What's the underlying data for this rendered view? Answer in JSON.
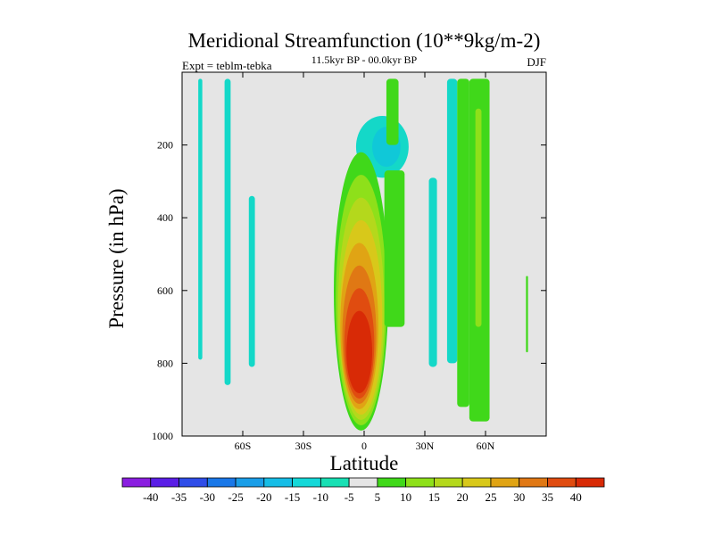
{
  "chart_data": {
    "type": "contour",
    "title": "Meridional Streamfunction (10**9kg/m-2)",
    "subtitle": "11.5kyr BP - 00.0kyr BP",
    "left_label": "Expt = teblm-tebka",
    "right_label": "DJF",
    "xlabel": "Latitude",
    "ylabel": "Pressure (in hPa)",
    "xlim": [
      -90,
      90
    ],
    "ylim": [
      0,
      1000
    ],
    "y_inverted": true,
    "x_ticks": [
      -60,
      -30,
      0,
      30,
      60
    ],
    "x_tick_labels": [
      "60S",
      "30S",
      "0",
      "30N",
      "60N"
    ],
    "y_ticks": [
      200,
      400,
      600,
      800,
      1000
    ],
    "y_tick_labels": [
      "200",
      "400",
      "600",
      "800",
      "1000"
    ],
    "background_color": "#e5e5e5",
    "levels": [
      -40,
      -35,
      -30,
      -25,
      -20,
      -15,
      -10,
      -5,
      5,
      10,
      15,
      20,
      25,
      30,
      35,
      40
    ],
    "colorbar_colors": [
      "#8a1ee0",
      "#5a1ee6",
      "#2f4de8",
      "#1a78e8",
      "#1a9ee8",
      "#16bde6",
      "#14d8d8",
      "#18e0b4",
      "#e5e5e5",
      "#40d81a",
      "#8ee01a",
      "#b4d81c",
      "#d8c81a",
      "#e0a414",
      "#e07814",
      "#e04c10",
      "#d82a06"
    ],
    "features": [
      {
        "type": "band",
        "sign": "negative",
        "lat": [
          -82,
          -80
        ],
        "p": [
          18,
          790
        ],
        "color": "#14d8c8"
      },
      {
        "type": "band",
        "sign": "negative",
        "lat": [
          -69,
          -66
        ],
        "p": [
          18,
          860
        ],
        "color": "#14d8c8"
      },
      {
        "type": "band",
        "sign": "negative",
        "lat": [
          -57,
          -54
        ],
        "p": [
          340,
          810
        ],
        "color": "#14d8c8"
      },
      {
        "type": "blob",
        "sign": "negative",
        "lat": [
          -4,
          22
        ],
        "p": [
          120,
          290
        ],
        "color": "#14d8c8"
      },
      {
        "type": "blob",
        "sign": "negative",
        "lat": [
          4,
          18
        ],
        "p": [
          150,
          260
        ],
        "color": "#10c8d8"
      },
      {
        "type": "band",
        "sign": "positive",
        "lat": [
          11,
          17
        ],
        "p": [
          18,
          200
        ],
        "color": "#40d81a"
      },
      {
        "type": "cell",
        "sign": "positive",
        "lat": [
          -15,
          12
        ],
        "p": [
          220,
          985
        ],
        "peak": 40,
        "color": "#d82a06"
      },
      {
        "type": "band",
        "sign": "positive",
        "lat": [
          10,
          20
        ],
        "p": [
          270,
          700
        ],
        "color": "#40d81a"
      },
      {
        "type": "band",
        "sign": "negative",
        "lat": [
          32,
          36
        ],
        "p": [
          290,
          810
        ],
        "color": "#14d8c8"
      },
      {
        "type": "band",
        "sign": "negative",
        "lat": [
          41,
          46
        ],
        "p": [
          18,
          800
        ],
        "color": "#14d8c8"
      },
      {
        "type": "band",
        "sign": "positive",
        "lat": [
          46,
          52
        ],
        "p": [
          18,
          920
        ],
        "color": "#40d81a"
      },
      {
        "type": "band",
        "sign": "positive",
        "lat": [
          52,
          62
        ],
        "p": [
          18,
          960
        ],
        "color": "#40d81a"
      },
      {
        "type": "band",
        "sign": "positive",
        "lat": [
          55,
          58
        ],
        "p": [
          100,
          700
        ],
        "color": "#8ee01a"
      },
      {
        "type": "band",
        "sign": "positive",
        "lat": [
          80,
          81
        ],
        "p": [
          560,
          770
        ],
        "color": "#40d81a"
      }
    ]
  }
}
